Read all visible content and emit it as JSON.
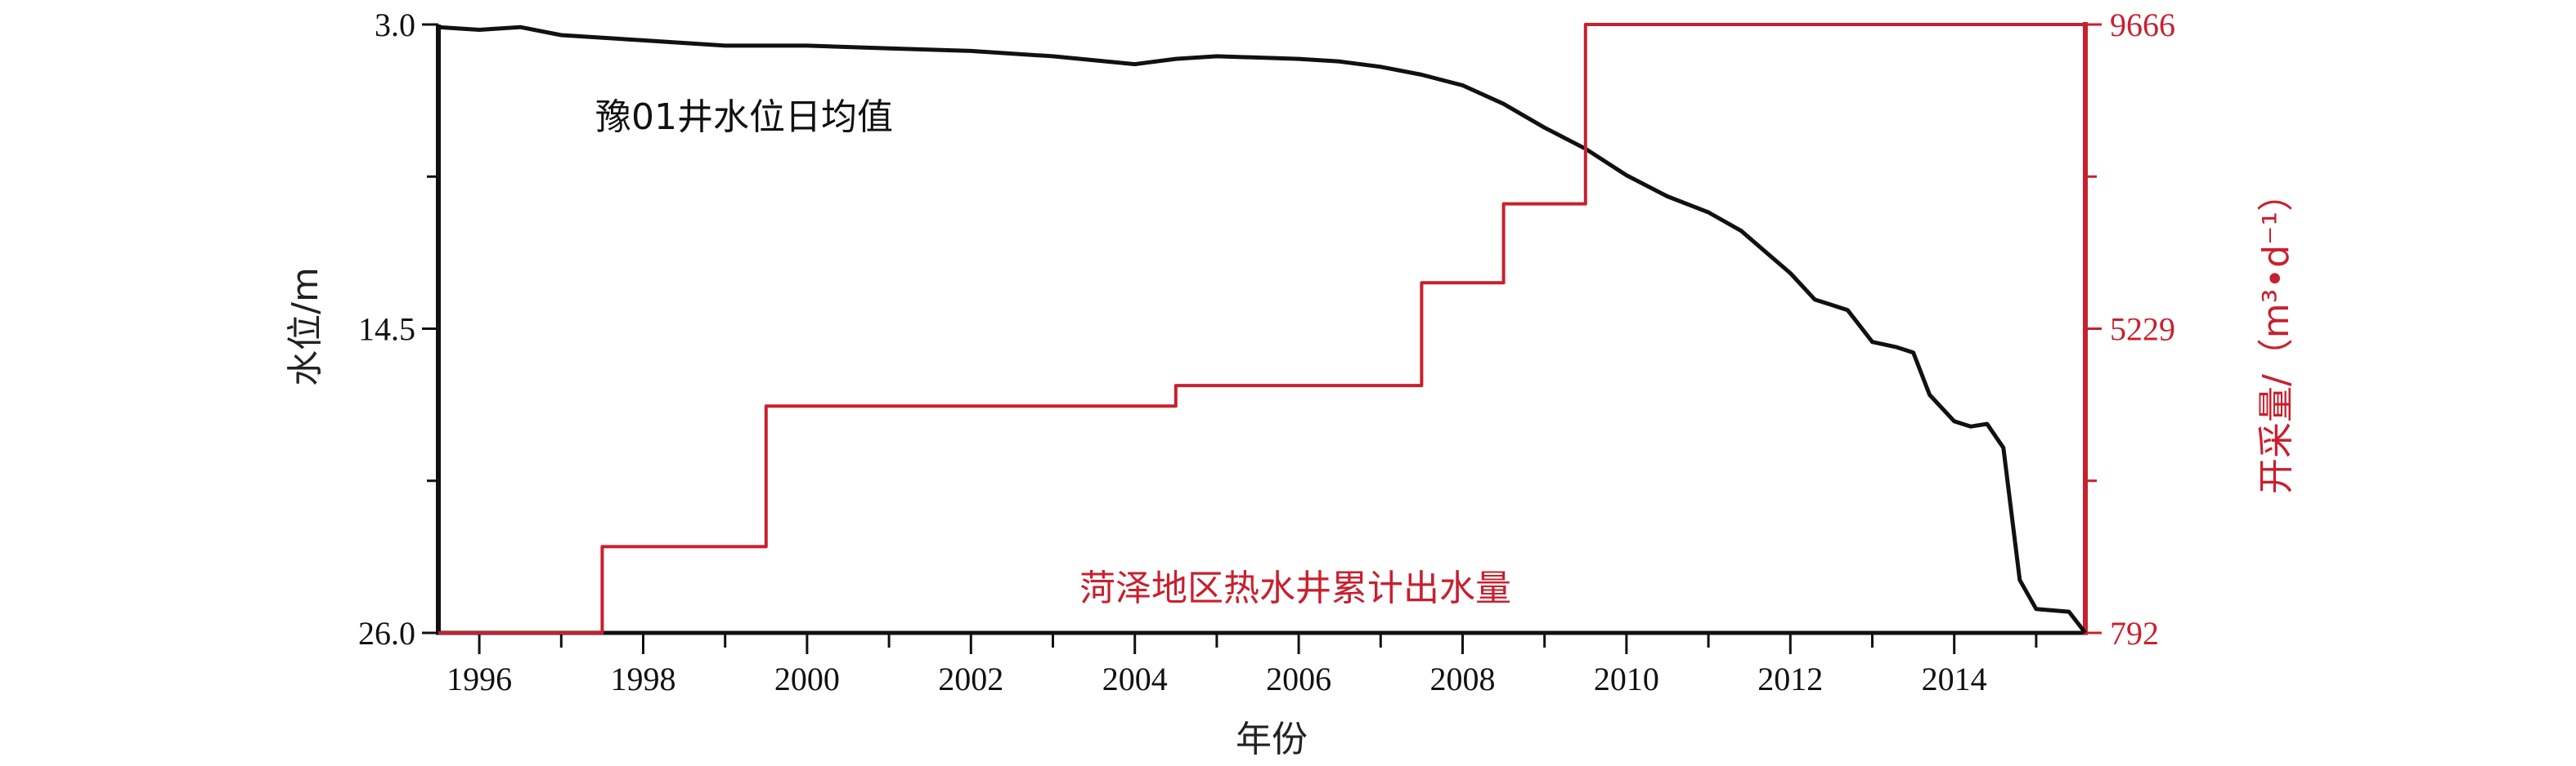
{
  "chart_data": {
    "type": "line",
    "x_axis": {
      "label": "年份",
      "range": [
        1995.5,
        2015.6
      ],
      "ticks": [
        1996,
        1998,
        2000,
        2002,
        2004,
        2006,
        2008,
        2010,
        2012,
        2014
      ],
      "tick_labels": [
        "1996",
        "1998",
        "2000",
        "2002",
        "2004",
        "2006",
        "2008",
        "2010",
        "2012",
        "2014"
      ]
    },
    "y_left": {
      "label": "水位/m",
      "range": [
        3.0,
        26.0
      ],
      "inverted": true,
      "ticks": [
        3.0,
        14.5,
        26.0
      ],
      "tick_labels": [
        "3.0",
        "14.5",
        "26.0"
      ],
      "minor_ticks": [
        8.75,
        20.25
      ]
    },
    "y_right": {
      "label": "开采量/（m³•d⁻¹）",
      "range": [
        792,
        9666
      ],
      "ticks": [
        792,
        5229,
        9666
      ],
      "tick_labels": [
        "792",
        "5229",
        "9666"
      ],
      "minor_ticks": [
        3010.5,
        7447.5
      ],
      "color": "#c8202f"
    },
    "series": [
      {
        "name": "豫01井水位日均值",
        "axis": "left",
        "color": "#111111",
        "x": [
          1995.5,
          1996.0,
          1996.5,
          1997.0,
          1998.0,
          1999.0,
          2000.0,
          2001.0,
          2002.0,
          2003.0,
          2004.0,
          2004.5,
          2005.0,
          2006.0,
          2006.5,
          2007.0,
          2007.5,
          2008.0,
          2008.5,
          2009.0,
          2009.5,
          2010.0,
          2010.5,
          2011.0,
          2011.4,
          2011.7,
          2012.0,
          2012.3,
          2012.5,
          2012.7,
          2013.0,
          2013.3,
          2013.5,
          2013.7,
          2014.0,
          2014.2,
          2014.4,
          2014.6,
          2014.8,
          2015.0,
          2015.4,
          2015.6
        ],
        "y": [
          3.1,
          3.2,
          3.1,
          3.4,
          3.6,
          3.8,
          3.8,
          3.9,
          4.0,
          4.2,
          4.5,
          4.3,
          4.2,
          4.3,
          4.4,
          4.6,
          4.9,
          5.3,
          6.0,
          6.9,
          7.7,
          8.7,
          9.5,
          10.1,
          10.8,
          11.6,
          12.4,
          13.4,
          13.6,
          13.8,
          15.0,
          15.2,
          15.4,
          17.0,
          18.0,
          18.2,
          18.1,
          19.0,
          24.0,
          25.1,
          25.2,
          26.0
        ]
      },
      {
        "name": "菏泽地区热水井累计出水量",
        "axis": "right",
        "color": "#c8202f",
        "step": true,
        "x": [
          1995.5,
          1997.5,
          1999.5,
          2004.5,
          2007.5,
          2008.5,
          2009.5,
          2015.6
        ],
        "y": [
          792,
          2050,
          4100,
          4400,
          5900,
          7050,
          9666,
          9666
        ]
      }
    ],
    "annotations": [
      {
        "text": "豫01井水位日均值",
        "color": "#111111"
      },
      {
        "text": "菏泽地区热水井累计出水量",
        "color": "#c8202f"
      }
    ],
    "grid": false,
    "legend": "none"
  }
}
